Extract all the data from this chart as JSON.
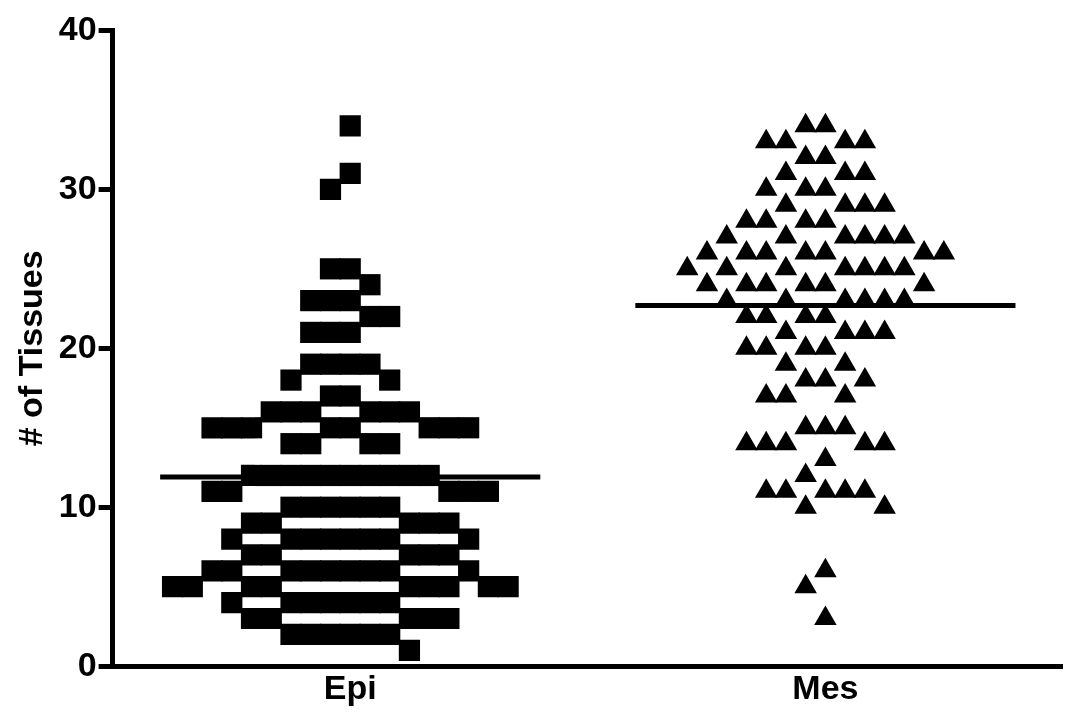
{
  "chart_data": {
    "type": "scatter",
    "categories": [
      "Epi",
      "Mes"
    ],
    "ylabel": "# of Tissues",
    "ylim": [
      0,
      40
    ],
    "yticks": [
      0,
      10,
      20,
      30,
      40
    ],
    "grid": false,
    "legend": false,
    "ref_lines": [
      {
        "axis": "y",
        "value": 11.9,
        "color": "#000000"
      },
      {
        "axis": "y",
        "value": 22.7,
        "color": "#000000"
      }
    ],
    "series": [
      {
        "type": "scatter",
        "color": "#000000",
        "marker": "square",
        "x": [
          "Epi",
          "Epi",
          "Epi",
          "Epi",
          "Epi",
          "Epi",
          "Epi",
          "Epi",
          "Epi",
          "Epi",
          "Epi",
          "Epi",
          "Epi",
          "Epi",
          "Epi",
          "Epi",
          "Epi",
          "Epi",
          "Epi",
          "Epi",
          "Epi",
          "Epi",
          "Epi",
          "Epi",
          "Epi",
          "Epi",
          "Epi",
          "Epi",
          "Epi",
          "Epi",
          "Epi",
          "Epi",
          "Epi",
          "Epi",
          "Epi",
          "Epi",
          "Epi",
          "Epi",
          "Epi",
          "Epi",
          "Epi",
          "Epi",
          "Epi",
          "Epi",
          "Epi",
          "Epi",
          "Epi",
          "Epi",
          "Epi",
          "Epi",
          "Epi",
          "Epi",
          "Epi",
          "Epi",
          "Epi",
          "Epi",
          "Epi",
          "Epi",
          "Epi",
          "Epi",
          "Epi",
          "Epi",
          "Epi",
          "Epi",
          "Epi",
          "Epi",
          "Epi",
          "Epi",
          "Epi",
          "Epi",
          "Epi",
          "Epi",
          "Epi",
          "Epi",
          "Epi",
          "Epi",
          "Epi",
          "Epi",
          "Epi",
          "Epi",
          "Epi",
          "Epi",
          "Epi",
          "Epi",
          "Epi",
          "Epi",
          "Epi",
          "Epi",
          "Epi",
          "Epi",
          "Epi",
          "Epi",
          "Epi",
          "Epi",
          "Epi",
          "Epi",
          "Epi",
          "Epi",
          "Epi",
          "Epi",
          "Epi",
          "Epi",
          "Epi",
          "Epi",
          "Epi",
          "Epi",
          "Epi",
          "Epi",
          "Epi",
          "Epi",
          "Epi",
          "Epi",
          "Epi",
          "Epi",
          "Epi",
          "Epi"
        ],
        "values": [
          34,
          31,
          30,
          25,
          25,
          24,
          23,
          23,
          23,
          22,
          22,
          21,
          21,
          21,
          19,
          19,
          19,
          19,
          18,
          18,
          17,
          17,
          16,
          16,
          16,
          16,
          16,
          16,
          15,
          15,
          15,
          15,
          15,
          15,
          15,
          15,
          14,
          14,
          14,
          14,
          12,
          12,
          12,
          12,
          12,
          12,
          12,
          12,
          12,
          12,
          11,
          11,
          11,
          11,
          11,
          10,
          10,
          10,
          10,
          10,
          10,
          9,
          9,
          9,
          9,
          9,
          8,
          8,
          8,
          8,
          8,
          8,
          8,
          8,
          7,
          7,
          7,
          7,
          7,
          6,
          6,
          6,
          6,
          6,
          6,
          6,
          6,
          6,
          5,
          5,
          5,
          5,
          5,
          5,
          5,
          5,
          5,
          4,
          4,
          4,
          4,
          4,
          4,
          4,
          3,
          3,
          3,
          3,
          3,
          2,
          2,
          2,
          2,
          2,
          2,
          1
        ]
      },
      {
        "type": "scatter",
        "color": "#000000",
        "marker": "triangle",
        "x": [
          "Mes",
          "Mes",
          "Mes",
          "Mes",
          "Mes",
          "Mes",
          "Mes",
          "Mes",
          "Mes",
          "Mes",
          "Mes",
          "Mes",
          "Mes",
          "Mes",
          "Mes",
          "Mes",
          "Mes",
          "Mes",
          "Mes",
          "Mes",
          "Mes",
          "Mes",
          "Mes",
          "Mes",
          "Mes",
          "Mes",
          "Mes",
          "Mes",
          "Mes",
          "Mes",
          "Mes",
          "Mes",
          "Mes",
          "Mes",
          "Mes",
          "Mes",
          "Mes",
          "Mes",
          "Mes",
          "Mes",
          "Mes",
          "Mes",
          "Mes",
          "Mes",
          "Mes",
          "Mes",
          "Mes",
          "Mes",
          "Mes",
          "Mes",
          "Mes",
          "Mes",
          "Mes",
          "Mes",
          "Mes",
          "Mes",
          "Mes",
          "Mes",
          "Mes",
          "Mes",
          "Mes",
          "Mes",
          "Mes",
          "Mes",
          "Mes",
          "Mes",
          "Mes",
          "Mes",
          "Mes",
          "Mes",
          "Mes",
          "Mes",
          "Mes",
          "Mes",
          "Mes",
          "Mes",
          "Mes",
          "Mes",
          "Mes",
          "Mes",
          "Mes",
          "Mes",
          "Mes",
          "Mes",
          "Mes",
          "Mes",
          "Mes",
          "Mes",
          "Mes",
          "Mes",
          "Mes",
          "Mes",
          "Mes",
          "Mes"
        ],
        "values": [
          34,
          34,
          33,
          33,
          33,
          33,
          32,
          32,
          31,
          31,
          31,
          30,
          30,
          30,
          29,
          29,
          29,
          29,
          28,
          28,
          28,
          28,
          27,
          27,
          27,
          27,
          27,
          27,
          26,
          26,
          26,
          26,
          26,
          26,
          26,
          25,
          25,
          25,
          25,
          25,
          25,
          25,
          24,
          24,
          24,
          24,
          24,
          24,
          23,
          23,
          23,
          23,
          23,
          23,
          22,
          22,
          22,
          22,
          21,
          21,
          21,
          21,
          20,
          20,
          20,
          20,
          19,
          19,
          18,
          18,
          18,
          17,
          17,
          17,
          15,
          15,
          15,
          14,
          14,
          14,
          14,
          14,
          13,
          12,
          11,
          11,
          11,
          11,
          11,
          10,
          10,
          6,
          5,
          3
        ]
      }
    ]
  }
}
